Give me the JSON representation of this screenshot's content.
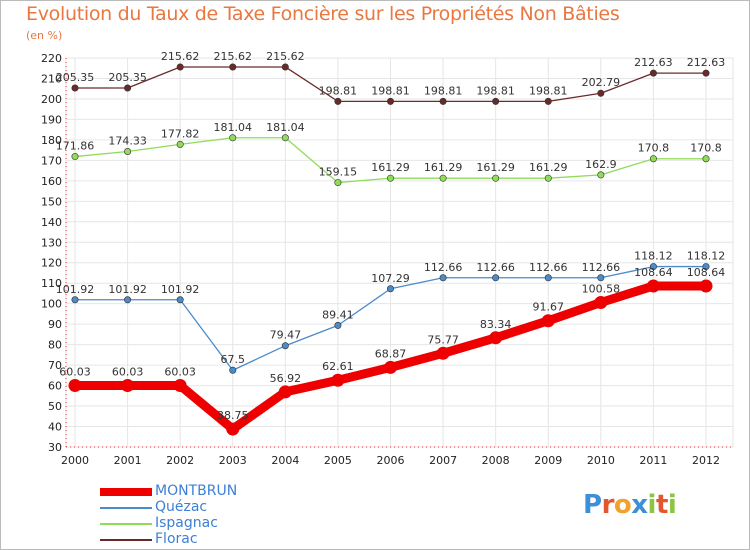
{
  "title": "Evolution du Taux de Taxe Foncière sur les Propriétés Non Bâties",
  "subtitle": "(en %)",
  "brand": {
    "letters": [
      "P",
      "r",
      "o",
      "x",
      "i",
      "t",
      "i"
    ],
    "colors": [
      "#3d8fd8",
      "#e4572e",
      "#f2a12c",
      "#3d8fd8",
      "#8cc63f",
      "#e4572e",
      "#8cc63f"
    ]
  },
  "chart_data": {
    "type": "line",
    "title": "Evolution du Taux de Taxe Foncière sur les Propriétés Non Bâties",
    "ylabel": "(en %)",
    "xlabel": "",
    "x": [
      "2000",
      "2001",
      "2002",
      "2003",
      "2004",
      "2005",
      "2006",
      "2007",
      "2008",
      "2009",
      "2010",
      "2011",
      "2012"
    ],
    "ylim": [
      30,
      220
    ],
    "yticks": [
      30,
      40,
      50,
      60,
      70,
      80,
      90,
      100,
      110,
      120,
      130,
      140,
      150,
      160,
      170,
      180,
      190,
      200,
      210,
      220
    ],
    "grid": true,
    "series": [
      {
        "name": "MONTBRUN",
        "color": "#ee0000",
        "values": [
          60.03,
          60.03,
          60.03,
          38.75,
          56.92,
          62.61,
          68.87,
          75.77,
          83.34,
          91.67,
          100.58,
          108.64,
          108.64
        ],
        "labels": [
          "60.03",
          "60.03",
          "60.03",
          "38.75",
          "56.92",
          "62.61",
          "68.87",
          "75.77",
          "83.34",
          "91.67",
          "100.58",
          "108.64",
          "108.64"
        ]
      },
      {
        "name": "Quézac",
        "color": "#4a8bc9",
        "values": [
          101.92,
          101.92,
          101.92,
          67.5,
          79.47,
          89.41,
          107.29,
          112.66,
          112.66,
          112.66,
          112.66,
          118.12,
          118.12
        ],
        "labels": [
          "101.92",
          "101.92",
          "101.92",
          "67.5",
          "79.47",
          "89.41",
          "107.29",
          "112.66",
          "112.66",
          "112.66",
          "112.66",
          "118.12",
          "118.12"
        ]
      },
      {
        "name": "Ispagnac",
        "color": "#8fdc5a",
        "values": [
          171.86,
          174.33,
          177.82,
          181.04,
          181.04,
          159.15,
          161.29,
          161.29,
          161.29,
          161.29,
          162.9,
          170.8,
          170.8
        ],
        "labels": [
          "171.86",
          "174.33",
          "177.82",
          "181.04",
          "181.04",
          "159.15",
          "161.29",
          "161.29",
          "161.29",
          "161.29",
          "162.9",
          "170.8",
          "170.8"
        ]
      },
      {
        "name": "Florac",
        "color": "#6b2a2a",
        "values": [
          205.35,
          205.35,
          215.62,
          215.62,
          215.62,
          198.81,
          198.81,
          198.81,
          198.81,
          198.81,
          202.79,
          212.63,
          212.63
        ],
        "labels": [
          "205.35",
          "205.35",
          "215.62",
          "215.62",
          "215.62",
          "198.81",
          "198.81",
          "198.81",
          "198.81",
          "198.81",
          "202.79",
          "212.63",
          "212.63"
        ]
      }
    ]
  }
}
